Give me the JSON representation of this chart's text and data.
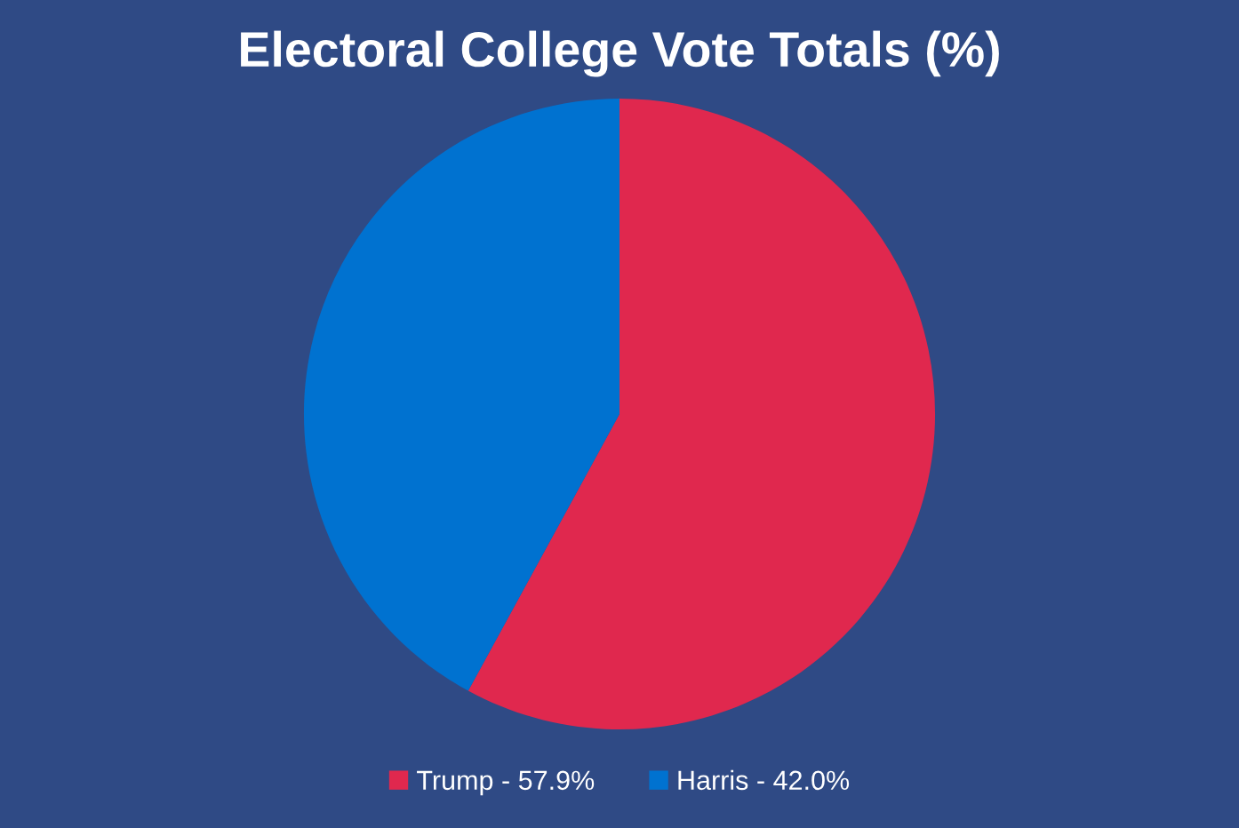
{
  "chart_data": {
    "type": "pie",
    "title": "Electoral College Vote Totals (%)",
    "categories": [
      "Trump - 57.9%",
      "Harris - 42.0%"
    ],
    "values": [
      57.9,
      42.0
    ],
    "colors": [
      "#e0284e",
      "#0072d0"
    ],
    "legend": "bottom"
  }
}
